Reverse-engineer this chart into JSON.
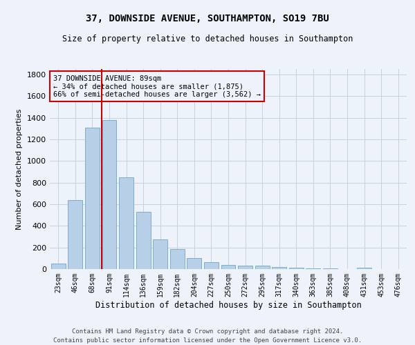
{
  "title": "37, DOWNSIDE AVENUE, SOUTHAMPTON, SO19 7BU",
  "subtitle": "Size of property relative to detached houses in Southampton",
  "xlabel": "Distribution of detached houses by size in Southampton",
  "ylabel": "Number of detached properties",
  "bar_labels": [
    "23sqm",
    "46sqm",
    "68sqm",
    "91sqm",
    "114sqm",
    "136sqm",
    "159sqm",
    "182sqm",
    "204sqm",
    "227sqm",
    "250sqm",
    "272sqm",
    "295sqm",
    "317sqm",
    "340sqm",
    "363sqm",
    "385sqm",
    "408sqm",
    "431sqm",
    "453sqm",
    "476sqm"
  ],
  "bar_values": [
    50,
    640,
    1310,
    1375,
    848,
    530,
    275,
    185,
    105,
    65,
    38,
    35,
    30,
    20,
    15,
    8,
    5,
    3,
    15,
    2,
    1
  ],
  "bar_color": "#b8cfe8",
  "bar_edge_color": "#7aadd4",
  "background_color": "#eef2fb",
  "grid_color": "#c8d0e0",
  "vline_bar_index": 3,
  "vline_color": "#cc0000",
  "annotation_text": "37 DOWNSIDE AVENUE: 89sqm\n← 34% of detached houses are smaller (1,875)\n66% of semi-detached houses are larger (3,562) →",
  "annotation_box_color": "#cc0000",
  "ylim": [
    0,
    1850
  ],
  "yticks": [
    0,
    200,
    400,
    600,
    800,
    1000,
    1200,
    1400,
    1600,
    1800
  ],
  "footer1": "Contains HM Land Registry data © Crown copyright and database right 2024.",
  "footer2": "Contains public sector information licensed under the Open Government Licence v3.0."
}
